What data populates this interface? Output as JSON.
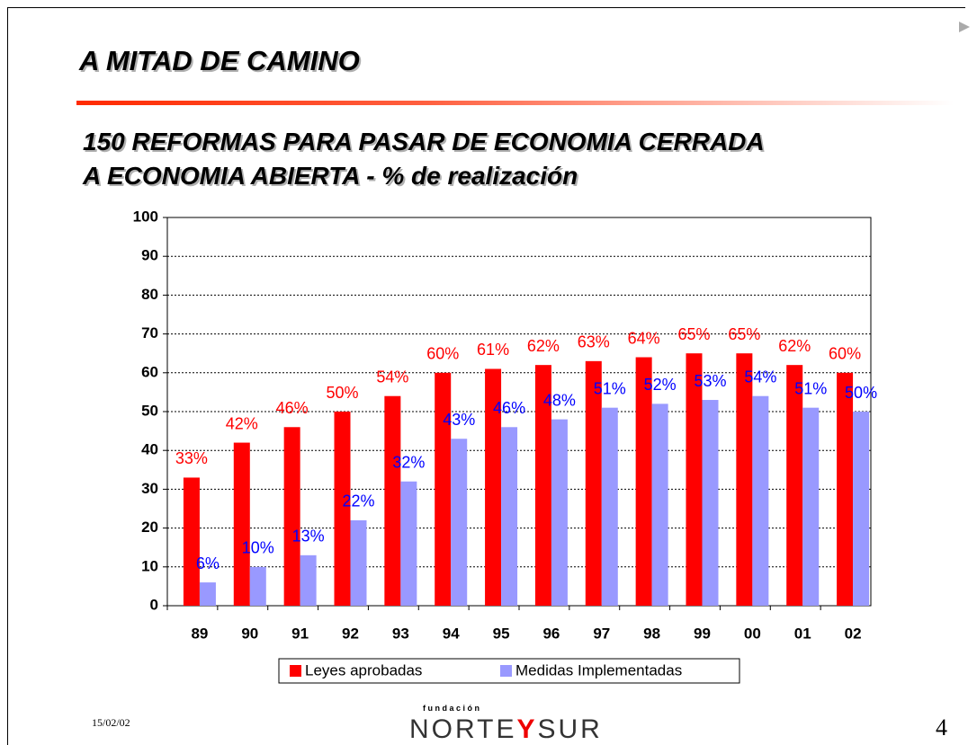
{
  "title": "A MITAD DE CAMINO",
  "subtitle": [
    "150 REFORMAS PARA PASAR DE ECONOMIA CERRADA",
    "A ECONOMIA ABIERTA - % de realización"
  ],
  "chart_data": {
    "type": "bar",
    "categories": [
      "89",
      "90",
      "91",
      "92",
      "93",
      "94",
      "95",
      "96",
      "97",
      "98",
      "99",
      "00",
      "01",
      "02"
    ],
    "series": [
      {
        "name": "Leyes aprobadas",
        "color": "#ff0000",
        "label_color": "#ff0000",
        "values": [
          33,
          42,
          46,
          50,
          54,
          60,
          61,
          62,
          63,
          64,
          65,
          65,
          62,
          60
        ],
        "value_labels": [
          "33%",
          "42%",
          "46%",
          "50%",
          "54%",
          "60%",
          "61%",
          "62%",
          "63%",
          "64%",
          "65%",
          "65%",
          "62%",
          "60%"
        ]
      },
      {
        "name": "Medidas Implementadas",
        "color": "#9999ff",
        "label_color": "#0000ff",
        "values": [
          6,
          10,
          13,
          22,
          32,
          43,
          46,
          48,
          51,
          52,
          53,
          54,
          51,
          50
        ],
        "value_labels": [
          "6%",
          "10%",
          "13%",
          "22%",
          "32%",
          "43%",
          "46%",
          "48%",
          "51%",
          "52%",
          "53%",
          "54%",
          "51%",
          "50%"
        ]
      }
    ],
    "ylim": [
      0,
      100
    ],
    "yticks": [
      0,
      10,
      20,
      30,
      40,
      50,
      60,
      70,
      80,
      90,
      100
    ],
    "grid": true,
    "legend": "bottom"
  },
  "footer": {
    "date": "15/02/02",
    "logo_small": "f u n d a c i ó n",
    "logo_left": "NORTE",
    "logo_mid": "Y",
    "logo_right": "SUR",
    "page": "4"
  }
}
